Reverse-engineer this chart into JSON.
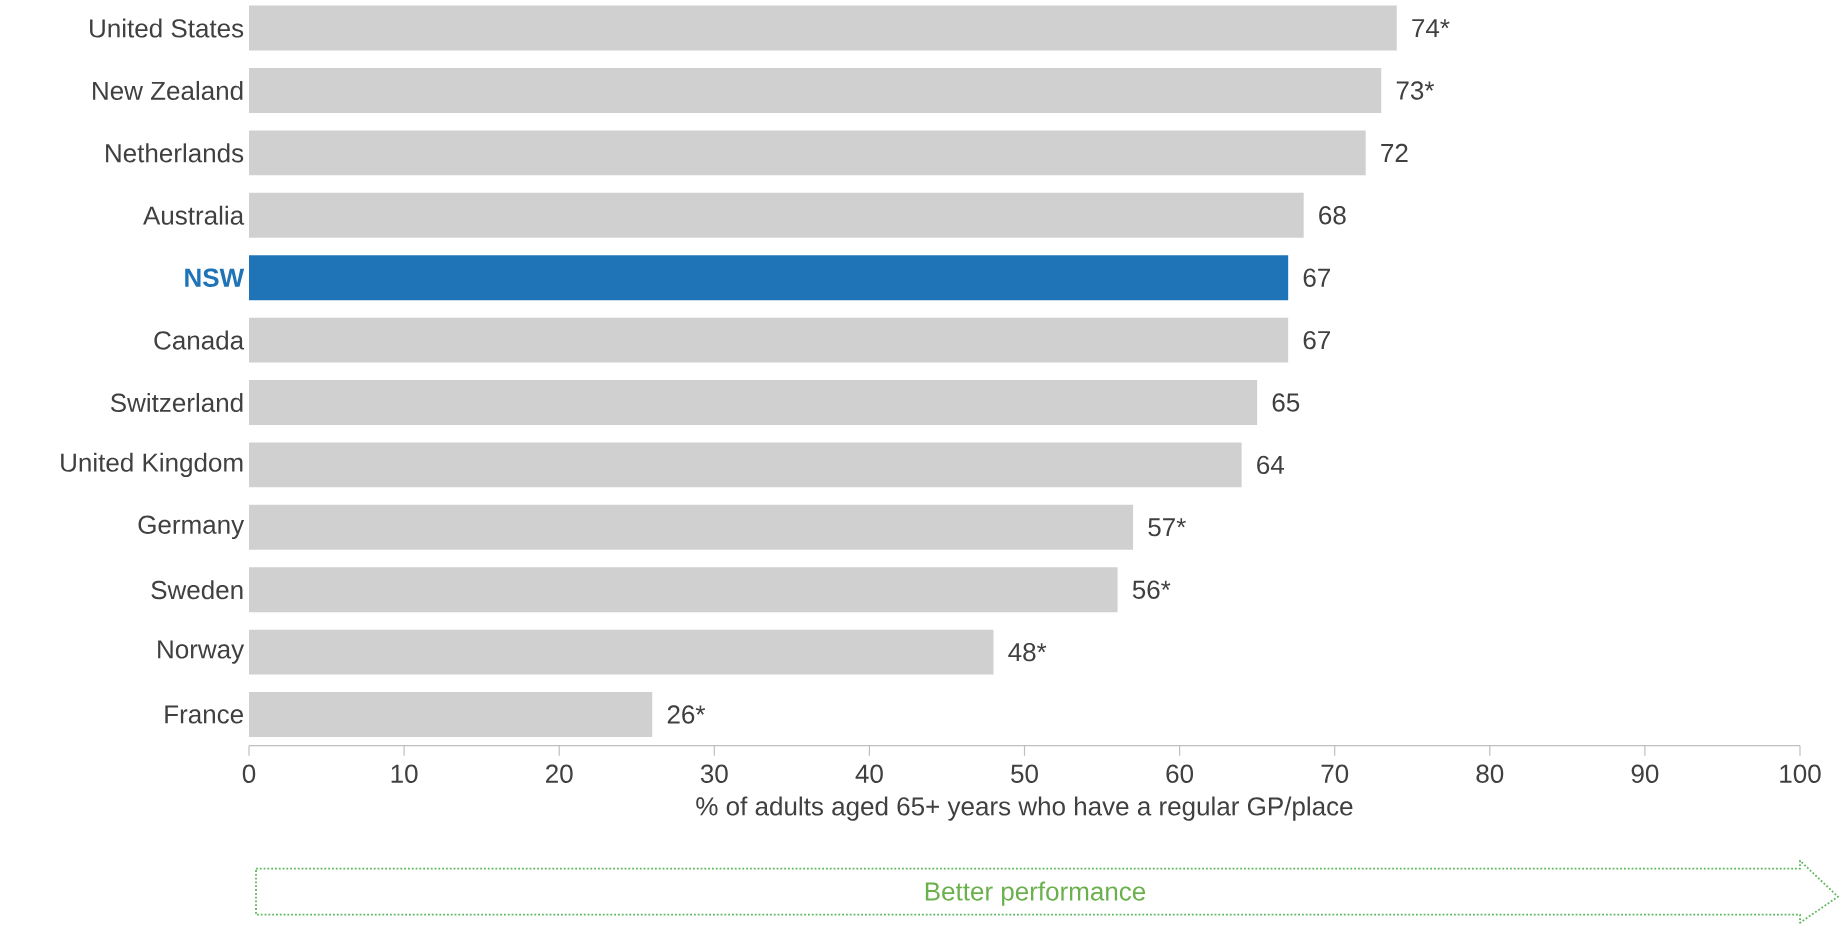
{
  "chart_data": {
    "type": "bar",
    "orientation": "horizontal",
    "categories": [
      "United States",
      "New Zealand",
      "Netherlands",
      "Australia",
      "NSW",
      "Canada",
      "Switzerland",
      "United Kingdom",
      "Germany",
      "Sweden",
      "Norway",
      "France"
    ],
    "values": [
      74,
      73,
      72,
      68,
      67,
      67,
      65,
      64,
      57,
      56,
      48,
      26
    ],
    "value_labels": [
      "74*",
      "73*",
      "72",
      "68",
      "67",
      "67",
      "65",
      "64",
      "57*",
      "56*",
      "48*",
      "26*"
    ],
    "colors": [
      "#d0d0d0",
      "#d0d0d0",
      "#d0d0d0",
      "#d0d0d0",
      "#1f74b8",
      "#d0d0d0",
      "#d0d0d0",
      "#d0d0d0",
      "#d0d0d0",
      "#d0d0d0",
      "#d0d0d0",
      "#d0d0d0"
    ],
    "xlim": [
      0,
      100
    ],
    "xticks": [
      0,
      10,
      20,
      30,
      40,
      50,
      60,
      70,
      80,
      90,
      100
    ],
    "xlabel": "% of adults aged 65+ years who have a regular GP/place",
    "annotations": [
      "Better performance"
    ],
    "grid": false
  }
}
